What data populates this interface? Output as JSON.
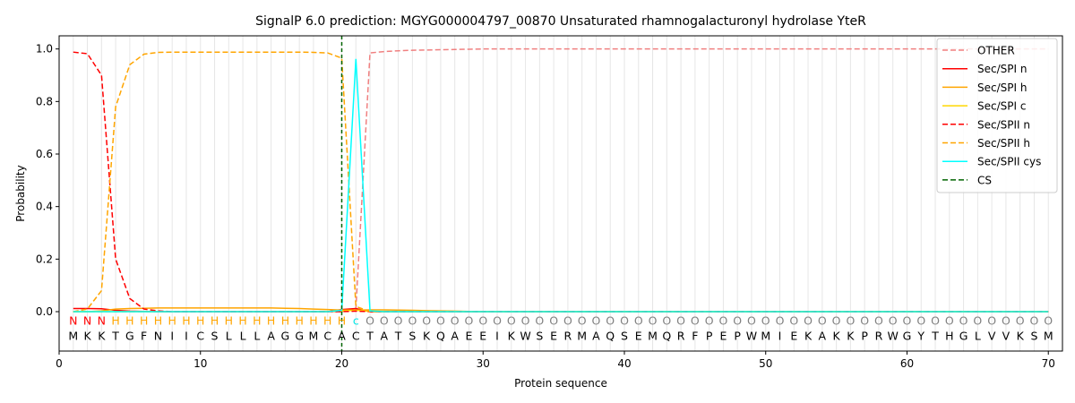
{
  "chart_data": {
    "type": "line",
    "title": "SignalP 6.0 prediction: MGYG000004797_00870 Unsaturated rhamnogalacturonyl hydrolase YteR",
    "xlabel": "Protein sequence",
    "ylabel": "Probability",
    "xlim": [
      0,
      71
    ],
    "ylim": [
      -0.15,
      1.05
    ],
    "xticks": [
      0,
      10,
      20,
      30,
      40,
      50,
      60,
      70
    ],
    "yticks": [
      0.0,
      0.2,
      0.4,
      0.6,
      0.8,
      1.0
    ],
    "ytick_labels": [
      "0.0",
      "0.2",
      "0.4",
      "0.6",
      "0.8",
      "1.0"
    ],
    "vertical_grid": "light grey line at each residue position 1–70",
    "legend_position": "top-right",
    "sequence": [
      "M",
      "K",
      "K",
      "T",
      "G",
      "F",
      "N",
      "I",
      "I",
      "C",
      "S",
      "L",
      "L",
      "L",
      "A",
      "G",
      "G",
      "M",
      "C",
      "A",
      "C",
      "T",
      "A",
      "T",
      "S",
      "K",
      "Q",
      "A",
      "E",
      "E",
      "I",
      "K",
      "W",
      "S",
      "E",
      "R",
      "M",
      "A",
      "Q",
      "S",
      "E",
      "M",
      "Q",
      "R",
      "F",
      "P",
      "E",
      "P",
      "W",
      "M",
      "I",
      "E",
      "K",
      "A",
      "K",
      "K",
      "P",
      "R",
      "W",
      "G",
      "Y",
      "T",
      "H",
      "G",
      "L",
      "V",
      "V",
      "K",
      "S",
      "M"
    ],
    "annotations": [
      "N",
      "N",
      "N",
      "H",
      "H",
      "H",
      "H",
      "H",
      "H",
      "H",
      "H",
      "H",
      "H",
      "H",
      "H",
      "H",
      "H",
      "H",
      "H",
      "H",
      "c",
      "O",
      "O",
      "O",
      "O",
      "O",
      "O",
      "O",
      "O",
      "O",
      "O",
      "O",
      "O",
      "O",
      "O",
      "O",
      "O",
      "O",
      "O",
      "O",
      "O",
      "O",
      "O",
      "O",
      "O",
      "O",
      "O",
      "O",
      "O",
      "O",
      "O",
      "O",
      "O",
      "O",
      "O",
      "O",
      "O",
      "O",
      "O",
      "O",
      "O",
      "O",
      "O",
      "O",
      "O",
      "O",
      "O",
      "O",
      "O",
      "O"
    ],
    "annotation_colors": {
      "N": "#ff0000",
      "H": "#ffa500",
      "c": "#00e5e5",
      "O": "#808080"
    },
    "cs_position": 20,
    "series": [
      {
        "name": "OTHER",
        "color": "#f08080",
        "dash": true,
        "points": [
          [
            1,
            0.0
          ],
          [
            2,
            0.0
          ],
          [
            3,
            0.0
          ],
          [
            4,
            0.0
          ],
          [
            5,
            0.0
          ],
          [
            6,
            0.0
          ],
          [
            7,
            0.0
          ],
          [
            8,
            0.0
          ],
          [
            9,
            0.0
          ],
          [
            10,
            0.0
          ],
          [
            11,
            0.0
          ],
          [
            12,
            0.0
          ],
          [
            13,
            0.0
          ],
          [
            14,
            0.0
          ],
          [
            15,
            0.0
          ],
          [
            16,
            0.0
          ],
          [
            17,
            0.0
          ],
          [
            18,
            0.0
          ],
          [
            19,
            0.0
          ],
          [
            20,
            0.0
          ],
          [
            21,
            0.01
          ],
          [
            22,
            0.985
          ],
          [
            23,
            0.99
          ],
          [
            24,
            0.993
          ],
          [
            25,
            0.995
          ],
          [
            26,
            0.996
          ],
          [
            27,
            0.997
          ],
          [
            28,
            0.998
          ],
          [
            29,
            0.999
          ],
          [
            30,
            1.0
          ],
          [
            70,
            1.0
          ]
        ]
      },
      {
        "name": "Sec/SPI n",
        "color": "#ff0000",
        "dash": false,
        "points": [
          [
            1,
            0.012
          ],
          [
            2,
            0.012
          ],
          [
            3,
            0.011
          ],
          [
            4,
            0.005
          ],
          [
            5,
            0.002
          ],
          [
            6,
            0.001
          ],
          [
            7,
            0.0
          ],
          [
            19,
            0.0
          ],
          [
            20,
            0.008
          ],
          [
            21,
            0.012
          ],
          [
            22,
            0.0
          ],
          [
            70,
            0.0
          ]
        ]
      },
      {
        "name": "Sec/SPI h",
        "color": "#ffa500",
        "dash": false,
        "points": [
          [
            1,
            0.0
          ],
          [
            2,
            0.0
          ],
          [
            3,
            0.003
          ],
          [
            4,
            0.01
          ],
          [
            5,
            0.012
          ],
          [
            6,
            0.013
          ],
          [
            7,
            0.014
          ],
          [
            8,
            0.014
          ],
          [
            9,
            0.014
          ],
          [
            10,
            0.014
          ],
          [
            11,
            0.014
          ],
          [
            12,
            0.014
          ],
          [
            13,
            0.014
          ],
          [
            14,
            0.014
          ],
          [
            15,
            0.014
          ],
          [
            16,
            0.013
          ],
          [
            17,
            0.012
          ],
          [
            18,
            0.01
          ],
          [
            19,
            0.008
          ],
          [
            20,
            0.006
          ],
          [
            21,
            0.006
          ],
          [
            22,
            0.007
          ],
          [
            23,
            0.007
          ],
          [
            24,
            0.006
          ],
          [
            25,
            0.005
          ],
          [
            26,
            0.004
          ],
          [
            27,
            0.003
          ],
          [
            28,
            0.002
          ],
          [
            29,
            0.001
          ],
          [
            30,
            0.0
          ],
          [
            70,
            0.0
          ]
        ]
      },
      {
        "name": "Sec/SPI c",
        "color": "#ffd700",
        "dash": false,
        "points": [
          [
            1,
            0.0
          ],
          [
            19,
            0.0
          ],
          [
            20,
            0.003
          ],
          [
            21,
            0.005
          ],
          [
            22,
            0.001
          ],
          [
            23,
            0.0
          ],
          [
            70,
            0.0
          ]
        ]
      },
      {
        "name": "Sec/SPII n",
        "color": "#ff0000",
        "dash": true,
        "points": [
          [
            1,
            0.988
          ],
          [
            2,
            0.982
          ],
          [
            3,
            0.9
          ],
          [
            4,
            0.2
          ],
          [
            5,
            0.05
          ],
          [
            6,
            0.01
          ],
          [
            7,
            0.003
          ],
          [
            8,
            0.0
          ],
          [
            19,
            0.0
          ],
          [
            20,
            0.0
          ],
          [
            21,
            0.002
          ],
          [
            22,
            0.0
          ],
          [
            70,
            0.0
          ]
        ]
      },
      {
        "name": "Sec/SPII h",
        "color": "#ffa500",
        "dash": true,
        "points": [
          [
            1,
            0.0
          ],
          [
            2,
            0.01
          ],
          [
            3,
            0.08
          ],
          [
            4,
            0.78
          ],
          [
            5,
            0.94
          ],
          [
            6,
            0.98
          ],
          [
            7,
            0.987
          ],
          [
            8,
            0.988
          ],
          [
            9,
            0.988
          ],
          [
            10,
            0.988
          ],
          [
            11,
            0.988
          ],
          [
            12,
            0.988
          ],
          [
            13,
            0.988
          ],
          [
            14,
            0.988
          ],
          [
            15,
            0.988
          ],
          [
            16,
            0.988
          ],
          [
            17,
            0.988
          ],
          [
            18,
            0.987
          ],
          [
            19,
            0.985
          ],
          [
            20,
            0.965
          ],
          [
            21,
            0.02
          ],
          [
            22,
            0.0
          ],
          [
            70,
            0.0
          ]
        ]
      },
      {
        "name": "Sec/SPII cys",
        "color": "#00ffff",
        "dash": false,
        "points": [
          [
            1,
            0.0
          ],
          [
            19,
            0.0
          ],
          [
            20,
            0.005
          ],
          [
            21,
            0.962
          ],
          [
            22,
            0.003
          ],
          [
            23,
            0.0
          ],
          [
            70,
            0.0
          ]
        ]
      },
      {
        "name": "CS",
        "color": "#006400",
        "dash": true,
        "vertical_at": 20
      }
    ]
  }
}
